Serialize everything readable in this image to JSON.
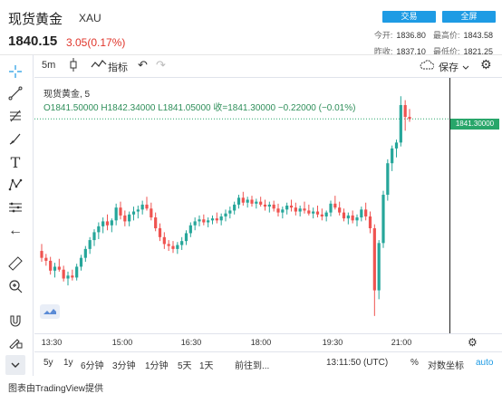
{
  "header": {
    "title": "现货黄金",
    "symbol": "XAU",
    "price": "1840.15",
    "change": "3.05(0.17%)",
    "trade_button": "交易",
    "fullscreen_button": "全屏",
    "stats": {
      "open_label": "今开:",
      "open": "1836.80",
      "high_label": "最高价:",
      "high": "1843.58",
      "prev_close_label": "昨收:",
      "prev_close": "1837.10",
      "low_label": "最低价:",
      "low": "1821.25"
    }
  },
  "toolbar": {
    "interval": "5m",
    "indicators": "指标",
    "save": "保存"
  },
  "legend": {
    "title": "现货黄金, 5",
    "ohlc": "O1841.50000  H1842.34000  L1841.05000  收=1841.30000  −0.22000 (−0.01%)"
  },
  "price_tag": "1841.30000",
  "time_axis": [
    "13:30",
    "15:00",
    "16:30",
    "18:00",
    "19:30",
    "21:00"
  ],
  "bottom_bar": {
    "ranges": [
      "5y",
      "1y",
      "6分钟",
      "3分钟",
      "1分钟",
      "5天",
      "1天"
    ],
    "goto": "前往到...",
    "clock": "13:11:50 (UTC)",
    "percent": "%",
    "log": "对数坐标",
    "auto": "auto"
  },
  "footer": "图表由TradingView提供",
  "colors": {
    "up": "#26a69a",
    "down": "#ef5350",
    "accent": "#1e9be4",
    "price_tag": "#28a66a"
  },
  "chart_data": {
    "type": "candlestick",
    "series_name": "现货黄金, 5",
    "current_price": 1841.3,
    "candles": [
      [
        1827.9,
        1828.6,
        1826.8,
        1827.2
      ],
      [
        1827.2,
        1827.6,
        1826.4,
        1826.9
      ],
      [
        1826.9,
        1827.3,
        1825.5,
        1825.9
      ],
      [
        1825.9,
        1826.7,
        1825.2,
        1826.3
      ],
      [
        1826.3,
        1827.1,
        1825.8,
        1826.0
      ],
      [
        1826.0,
        1826.4,
        1824.8,
        1825.1
      ],
      [
        1825.1,
        1825.8,
        1824.4,
        1825.4
      ],
      [
        1825.4,
        1826.0,
        1824.9,
        1825.2
      ],
      [
        1825.2,
        1826.6,
        1824.9,
        1826.3
      ],
      [
        1826.3,
        1827.5,
        1825.9,
        1827.2
      ],
      [
        1827.2,
        1828.4,
        1826.8,
        1828.1
      ],
      [
        1828.1,
        1829.3,
        1827.6,
        1829.0
      ],
      [
        1829.0,
        1830.1,
        1828.4,
        1829.8
      ],
      [
        1829.8,
        1830.8,
        1829.1,
        1830.4
      ],
      [
        1830.4,
        1831.3,
        1829.7,
        1830.9
      ],
      [
        1830.9,
        1831.6,
        1830.0,
        1830.5
      ],
      [
        1830.5,
        1831.2,
        1829.8,
        1831.0
      ],
      [
        1831.0,
        1832.7,
        1830.5,
        1832.3
      ],
      [
        1832.3,
        1832.9,
        1831.1,
        1831.5
      ],
      [
        1831.5,
        1832.0,
        1830.4,
        1830.9
      ],
      [
        1830.9,
        1831.9,
        1830.4,
        1831.6
      ],
      [
        1831.6,
        1832.4,
        1831.0,
        1831.9
      ],
      [
        1831.9,
        1832.5,
        1831.2,
        1832.1
      ],
      [
        1832.1,
        1833.0,
        1831.6,
        1832.6
      ],
      [
        1832.6,
        1833.4,
        1832.0,
        1832.2
      ],
      [
        1832.2,
        1832.8,
        1831.0,
        1831.3
      ],
      [
        1831.3,
        1831.8,
        1829.9,
        1830.2
      ],
      [
        1830.2,
        1830.7,
        1828.9,
        1829.3
      ],
      [
        1829.3,
        1829.8,
        1828.1,
        1828.6
      ],
      [
        1828.6,
        1829.0,
        1827.9,
        1828.4
      ],
      [
        1828.4,
        1828.9,
        1827.7,
        1828.1
      ],
      [
        1828.1,
        1828.8,
        1827.6,
        1828.5
      ],
      [
        1828.5,
        1829.3,
        1828.0,
        1828.9
      ],
      [
        1828.9,
        1830.0,
        1828.5,
        1829.7
      ],
      [
        1829.7,
        1830.8,
        1829.3,
        1830.5
      ],
      [
        1830.5,
        1831.3,
        1830.0,
        1830.9
      ],
      [
        1830.9,
        1831.5,
        1830.4,
        1831.1
      ],
      [
        1831.1,
        1831.6,
        1830.5,
        1830.8
      ],
      [
        1830.8,
        1831.3,
        1830.3,
        1831.0
      ],
      [
        1831.0,
        1831.5,
        1830.6,
        1831.2
      ],
      [
        1831.2,
        1831.8,
        1830.7,
        1831.0
      ],
      [
        1831.0,
        1831.7,
        1830.5,
        1831.4
      ],
      [
        1831.4,
        1832.1,
        1830.9,
        1831.7
      ],
      [
        1831.7,
        1832.4,
        1831.2,
        1832.0
      ],
      [
        1832.0,
        1832.9,
        1831.6,
        1832.6
      ],
      [
        1832.6,
        1833.6,
        1832.2,
        1833.3
      ],
      [
        1833.3,
        1833.9,
        1832.5,
        1832.8
      ],
      [
        1832.8,
        1833.4,
        1832.3,
        1833.1
      ],
      [
        1833.1,
        1833.5,
        1832.4,
        1832.7
      ],
      [
        1832.7,
        1833.2,
        1832.2,
        1832.9
      ],
      [
        1832.9,
        1833.4,
        1832.4,
        1832.6
      ],
      [
        1832.6,
        1833.1,
        1832.0,
        1832.4
      ],
      [
        1832.4,
        1832.9,
        1831.8,
        1832.6
      ],
      [
        1832.6,
        1833.0,
        1831.9,
        1832.2
      ],
      [
        1832.2,
        1832.7,
        1831.4,
        1831.8
      ],
      [
        1831.8,
        1832.4,
        1831.2,
        1832.1
      ],
      [
        1832.1,
        1832.8,
        1831.6,
        1832.5
      ],
      [
        1832.5,
        1833.1,
        1831.9,
        1832.3
      ],
      [
        1832.3,
        1832.8,
        1831.5,
        1831.9
      ],
      [
        1831.9,
        1832.5,
        1831.4,
        1832.2
      ],
      [
        1832.2,
        1832.9,
        1831.7,
        1832.0
      ],
      [
        1832.0,
        1832.6,
        1831.5,
        1831.7
      ],
      [
        1831.7,
        1832.3,
        1831.2,
        1831.9
      ],
      [
        1831.9,
        1832.5,
        1831.3,
        1831.6
      ],
      [
        1831.6,
        1832.2,
        1831.0,
        1831.4
      ],
      [
        1831.4,
        1832.0,
        1830.9,
        1831.8
      ],
      [
        1831.8,
        1833.0,
        1831.4,
        1832.7
      ],
      [
        1832.7,
        1833.5,
        1832.1,
        1832.3
      ],
      [
        1832.3,
        1832.9,
        1831.5,
        1831.8
      ],
      [
        1831.8,
        1832.2,
        1830.9,
        1831.2
      ],
      [
        1831.2,
        1831.8,
        1830.6,
        1831.5
      ],
      [
        1831.5,
        1832.0,
        1830.7,
        1831.0
      ],
      [
        1831.0,
        1831.6,
        1830.4,
        1831.3
      ],
      [
        1831.3,
        1832.4,
        1830.9,
        1832.1
      ],
      [
        1832.1,
        1832.8,
        1831.0,
        1831.4
      ],
      [
        1831.4,
        1831.9,
        1829.7,
        1830.2
      ],
      [
        1830.2,
        1830.6,
        1821.3,
        1823.9
      ],
      [
        1823.9,
        1829.0,
        1823.0,
        1828.7
      ],
      [
        1828.7,
        1834.0,
        1828.2,
        1833.6
      ],
      [
        1833.6,
        1837.2,
        1833.0,
        1836.8
      ],
      [
        1836.8,
        1838.6,
        1836.0,
        1838.3
      ],
      [
        1838.3,
        1839.2,
        1837.4,
        1838.9
      ],
      [
        1838.9,
        1843.6,
        1838.5,
        1842.7
      ],
      [
        1842.7,
        1843.2,
        1840.1,
        1841.5
      ],
      [
        1841.5,
        1842.3,
        1841.0,
        1841.3
      ]
    ],
    "x_ticks": [
      "13:30",
      "15:00",
      "16:30",
      "18:00",
      "19:30",
      "21:00"
    ],
    "y_range": [
      1820,
      1845
    ]
  }
}
